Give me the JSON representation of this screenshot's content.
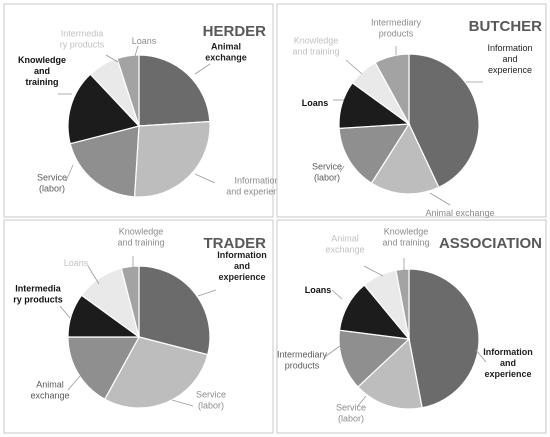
{
  "chart_data": [
    {
      "type": "pie",
      "title": "HERDER",
      "start_angle_deg": 0,
      "slices": [
        {
          "label": "Animal exchange",
          "value": 24,
          "color": "#6b6b6b",
          "label_color": "#1f1f1f",
          "label_bold": true
        },
        {
          "label": "Information and experience",
          "value": 27,
          "color": "#bdbdbd",
          "label_color": "#8c8c8c",
          "label_bold": false
        },
        {
          "label": "Service (labor)",
          "value": 20,
          "color": "#8f8f8f",
          "label_color": "#5a5a5a",
          "label_bold": false
        },
        {
          "label": "Knowledge and training",
          "value": 17,
          "color": "#1c1c1c",
          "label_color": "#111111",
          "label_bold": true
        },
        {
          "label": "Intermedia ry products",
          "value": 7,
          "color": "#e9e9e9",
          "label_color": "#c2c2c2",
          "label_bold": false
        },
        {
          "label": "Loans",
          "value": 5,
          "color": "#a3a3a3",
          "label_color": "#8c8c8c",
          "label_bold": false
        }
      ]
    },
    {
      "type": "pie",
      "title": "BUTCHER",
      "start_angle_deg": 0,
      "slices": [
        {
          "label": "Information and experience",
          "value": 43,
          "color": "#6b6b6b",
          "label_color": "#1f1f1f",
          "label_bold": false
        },
        {
          "label": "Animal exchange",
          "value": 16,
          "color": "#bdbdbd",
          "label_color": "#8c8c8c",
          "label_bold": false
        },
        {
          "label": "Service (labor)",
          "value": 15,
          "color": "#8f8f8f",
          "label_color": "#5a5a5a",
          "label_bold": false
        },
        {
          "label": "Loans",
          "value": 11,
          "color": "#1c1c1c",
          "label_color": "#111111",
          "label_bold": true
        },
        {
          "label": "Knowledge and training",
          "value": 7,
          "color": "#e9e9e9",
          "label_color": "#c2c2c2",
          "label_bold": false
        },
        {
          "label": "Intermediary products",
          "value": 8,
          "color": "#a3a3a3",
          "label_color": "#8c8c8c",
          "label_bold": false
        }
      ]
    },
    {
      "type": "pie",
      "title": "TRADER",
      "start_angle_deg": 0,
      "slices": [
        {
          "label": "Information and experience",
          "value": 29,
          "color": "#6b6b6b",
          "label_color": "#1f1f1f",
          "label_bold": true
        },
        {
          "label": "Service (labor)",
          "value": 29,
          "color": "#bdbdbd",
          "label_color": "#8c8c8c",
          "label_bold": false
        },
        {
          "label": "Animal exchange",
          "value": 17,
          "color": "#8f8f8f",
          "label_color": "#5a5a5a",
          "label_bold": false
        },
        {
          "label": "Intermedia ry products",
          "value": 10,
          "color": "#1c1c1c",
          "label_color": "#111111",
          "label_bold": true
        },
        {
          "label": "Loans",
          "value": 11,
          "color": "#e9e9e9",
          "label_color": "#c2c2c2",
          "label_bold": false
        },
        {
          "label": "Knowledge and training",
          "value": 4,
          "color": "#a3a3a3",
          "label_color": "#8c8c8c",
          "label_bold": false
        }
      ]
    },
    {
      "type": "pie",
      "title": "ASSOCIATION",
      "start_angle_deg": 0,
      "slices": [
        {
          "label": "Information and experience",
          "value": 47,
          "color": "#6b6b6b",
          "label_color": "#1f1f1f",
          "label_bold": true
        },
        {
          "label": "Service (labor)",
          "value": 16,
          "color": "#bdbdbd",
          "label_color": "#8c8c8c",
          "label_bold": false
        },
        {
          "label": "Intermediary products",
          "value": 14,
          "color": "#8f8f8f",
          "label_color": "#5a5a5a",
          "label_bold": false
        },
        {
          "label": "Loans",
          "value": 12,
          "color": "#1c1c1c",
          "label_color": "#111111",
          "label_bold": true
        },
        {
          "label": "Animal exchange",
          "value": 8,
          "color": "#e9e9e9",
          "label_color": "#c2c2c2",
          "label_bold": false
        },
        {
          "label": "Knowledge and training",
          "value": 3,
          "color": "#a3a3a3",
          "label_color": "#8c8c8c",
          "label_bold": false
        }
      ]
    }
  ]
}
